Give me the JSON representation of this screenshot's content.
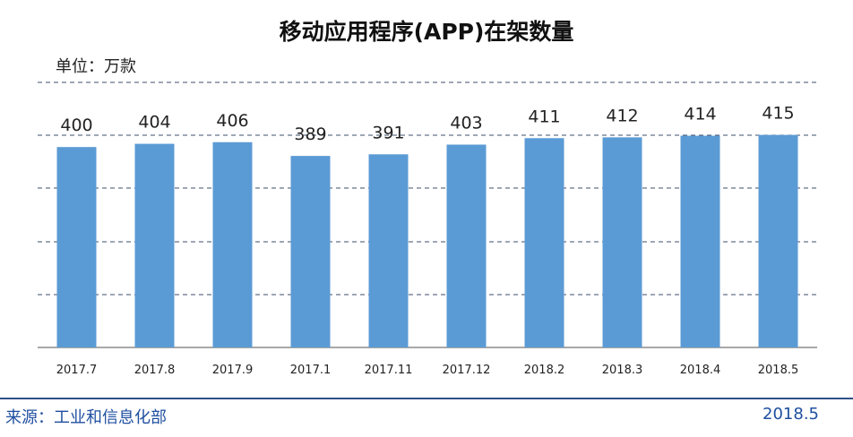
{
  "chart_data": {
    "type": "bar",
    "title": "移动应用程序(APP)在架数量",
    "unit_label": "单位：万款",
    "categories": [
      "2017.7",
      "2017.8",
      "2017.9",
      "2017.1",
      "2017.11",
      "2017.12",
      "2018.2",
      "2018.3",
      "2018.4",
      "2018.5"
    ],
    "values": [
      400,
      404,
      406,
      389,
      391,
      403,
      411,
      412,
      414,
      415
    ],
    "bar_color": "#5b9bd5",
    "grid": "dashed horizontal",
    "legend": "none"
  },
  "footer": {
    "source": "来源：工业和信息化部",
    "date": "2018.5"
  }
}
